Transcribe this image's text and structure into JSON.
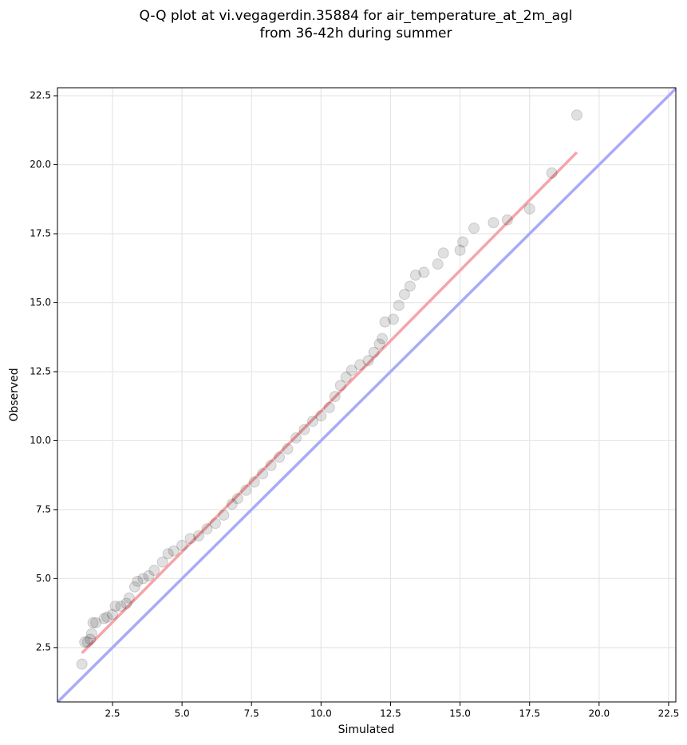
{
  "chart_data": {
    "type": "scatter",
    "title": [
      "Q-Q plot at vi.vegagerdin.35884 for air_temperature_at_2m_agl",
      "from 36-42h during summer"
    ],
    "xlabel": "Simulated",
    "ylabel": "Observed",
    "grid": true,
    "color": "#000000",
    "xlim": [
      0.52,
      22.76
    ],
    "ylim": [
      0.53,
      22.79
    ],
    "xticks": [
      2.5,
      {
        "value": 5,
        "label": "5.0"
      },
      7.5,
      {
        "value": 10,
        "label": "10.0"
      },
      12.5,
      {
        "value": 15,
        "label": "15.0"
      },
      17.5,
      {
        "value": 20,
        "label": "20.0"
      },
      22.5
    ],
    "yticks": [
      2.5,
      {
        "value": 5,
        "label": "5.0"
      },
      7.5,
      {
        "value": 10,
        "label": "10.0"
      },
      12.5,
      {
        "value": 15,
        "label": "15.0"
      },
      17.5,
      {
        "value": 20,
        "label": "20.0"
      },
      22.5
    ],
    "x": [
      1.4,
      1.5,
      1.6,
      1.7,
      1.75,
      1.8,
      1.9,
      2.2,
      2.3,
      2.5,
      2.6,
      2.8,
      3.0,
      3.1,
      3.3,
      3.4,
      3.6,
      3.8,
      4.0,
      4.3,
      4.5,
      4.7,
      5.0,
      5.3,
      5.6,
      5.9,
      6.2,
      6.5,
      6.8,
      7.0,
      7.3,
      7.6,
      7.9,
      8.2,
      8.5,
      8.8,
      9.1,
      9.4,
      9.7,
      10.0,
      10.3,
      10.5,
      10.7,
      10.9,
      11.1,
      11.4,
      11.7,
      11.9,
      12.1,
      12.2,
      12.3,
      12.6,
      12.8,
      13.0,
      13.2,
      13.4,
      13.7,
      14.2,
      14.4,
      15.0,
      15.1,
      15.5,
      16.2,
      16.7,
      17.5,
      18.3,
      19.2
    ],
    "values": [
      1.9,
      2.7,
      2.7,
      2.8,
      3.0,
      3.4,
      3.4,
      3.55,
      3.6,
      3.7,
      4.0,
      4.0,
      4.1,
      4.3,
      4.7,
      4.9,
      5.0,
      5.1,
      5.3,
      5.6,
      5.9,
      6.0,
      6.2,
      6.45,
      6.55,
      6.8,
      7.0,
      7.3,
      7.7,
      7.9,
      8.2,
      8.5,
      8.8,
      9.1,
      9.4,
      9.7,
      10.1,
      10.4,
      10.7,
      10.9,
      11.2,
      11.6,
      12.0,
      12.3,
      12.55,
      12.75,
      12.9,
      13.2,
      13.5,
      13.7,
      14.3,
      14.4,
      14.9,
      15.3,
      15.6,
      16.0,
      16.1,
      16.4,
      16.8,
      16.9,
      17.2,
      17.7,
      17.9,
      18.0,
      18.4,
      19.7,
      21.8
    ],
    "lines": [
      {
        "color": "#aaaaf8",
        "x": [
          0.52,
          22.76
        ],
        "values": [
          0.52,
          22.76
        ]
      },
      {
        "color": "#f5a5a8",
        "x": [
          1.4,
          19.2
        ],
        "values": [
          2.3,
          20.45
        ]
      }
    ]
  }
}
